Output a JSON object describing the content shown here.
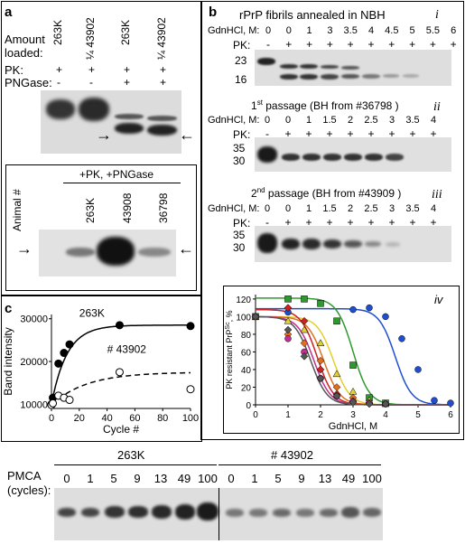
{
  "panel_a": {
    "label": "a",
    "amount_loaded_label": "Amount\nloaded:",
    "lane_labels": [
      "263K",
      "¼ 43902",
      "263K",
      "¼ 43902"
    ],
    "pk_label": "PK:",
    "pngase_label": "PNGase:",
    "pk_values": [
      "+",
      "+",
      "+",
      "+"
    ],
    "pngase_values": [
      "-",
      "-",
      "+",
      "+"
    ],
    "lower_header": "+PK, +PNGase",
    "animal_label": "Animal #",
    "lower_lane_labels": [
      "263K",
      "43908",
      "36798"
    ],
    "arrow_left": "→",
    "arrow_right": "←"
  },
  "panel_b": {
    "label": "b",
    "i": {
      "title": "rPrP fibrils annealed in NBH",
      "roman": "i",
      "gdn_label": "GdnHCl, M:",
      "gdn_values": [
        "0",
        "0",
        "1",
        "3",
        "3.5",
        "4",
        "4.5",
        "5",
        "5.5",
        "6"
      ],
      "pk_label": "PK:",
      "pk_values": [
        "-",
        "+",
        "+",
        "+",
        "+",
        "+",
        "+",
        "+",
        "+",
        "+"
      ],
      "mw": [
        "23",
        "16"
      ]
    },
    "ii": {
      "title_pre": "1",
      "title_sup": "st",
      "title_post": " passage (BH from #36798 )",
      "roman": "ii",
      "gdn_label": "GdnHCl, M:",
      "gdn_values": [
        "0",
        "0",
        "1",
        "1.5",
        "2",
        "2.5",
        "3",
        "3.5",
        "4"
      ],
      "pk_label": "PK:",
      "pk_values": [
        "-",
        "+",
        "+",
        "+",
        "+",
        "+",
        "+",
        "+",
        "+"
      ],
      "mw": [
        "35",
        "30"
      ]
    },
    "iii": {
      "title_pre": "2",
      "title_sup": "nd",
      "title_post": " passage (BH from #43909 )",
      "roman": "iii",
      "gdn_label": "GdnHCl, M:",
      "gdn_values": [
        "0",
        "0",
        "1",
        "1.5",
        "2",
        "2.5",
        "3",
        "3.5",
        "4"
      ],
      "pk_label": "PK:",
      "pk_values": [
        "-",
        "+",
        "+",
        "+",
        "+",
        "+",
        "+",
        "+",
        "+"
      ],
      "mw": [
        "35",
        "30"
      ]
    },
    "iv": {
      "roman": "iv"
    }
  },
  "panel_c": {
    "label": "c",
    "pmca_label": "PMCA\n(cycles):",
    "group_263k": "263K",
    "group_43902": "# 43902",
    "cycles_263k": [
      "0",
      "1",
      "5",
      "9",
      "13",
      "49",
      "100"
    ],
    "cycles_43902": [
      "0",
      "1",
      "5",
      "9",
      "13",
      "49",
      "100"
    ]
  },
  "chart_data": [
    {
      "type": "scatter",
      "ylabel": "Band intensity",
      "xlabel": "Cycle #",
      "xlim": [
        0,
        100
      ],
      "ylim": [
        9000,
        31000
      ],
      "x_ticks": [
        0,
        20,
        40,
        60,
        80,
        100
      ],
      "y_ticks": [
        10000,
        20000,
        30000
      ],
      "y_tick_labels": [
        "10000",
        "20000",
        "30000"
      ],
      "grid": false,
      "series": [
        {
          "name": "263K",
          "fill": "#000000",
          "x": [
            0,
            1,
            5,
            9,
            13,
            49,
            100
          ],
          "y": [
            10000,
            11500,
            19500,
            22000,
            24000,
            28500,
            28300
          ],
          "fit": "solid"
        },
        {
          "name": "# 43902",
          "fill": "#ffffff",
          "x": [
            0,
            1,
            5,
            9,
            13,
            49,
            100
          ],
          "y": [
            9800,
            10200,
            12000,
            11500,
            11000,
            17500,
            13500
          ],
          "fit": "dashed"
        }
      ]
    },
    {
      "type": "line",
      "ylabel_pre": "PK resistant PrP",
      "ylabel_sup": "Sc",
      "ylabel_post": ", %",
      "xlabel": "GdnHCl, M",
      "xlim": [
        0,
        6
      ],
      "ylim": [
        0,
        125
      ],
      "x_ticks": [
        0,
        1,
        2,
        3,
        4,
        5,
        6
      ],
      "y_ticks": [
        0,
        20,
        40,
        60,
        80,
        100,
        120
      ],
      "grid": false,
      "series": [
        {
          "color": "#1f4fcf",
          "marker": "circle",
          "x": [
            0,
            1,
            3,
            3.5,
            4,
            4.5,
            5,
            5.5,
            6
          ],
          "y": [
            100,
            105,
            108,
            110,
            100,
            75,
            40,
            5,
            2
          ],
          "mid": 4.3,
          "top": 109
        },
        {
          "color": "#2e9a2e",
          "marker": "square",
          "x": [
            0,
            1,
            1.5,
            2,
            2.5,
            3,
            3.5,
            4
          ],
          "y": [
            100,
            120,
            120,
            115,
            95,
            45,
            8,
            2
          ],
          "mid": 3.0,
          "top": 121
        },
        {
          "color": "#e0d030",
          "marker": "triangle",
          "x": [
            0,
            1,
            1.5,
            2,
            2.5,
            3,
            3.5,
            4
          ],
          "y": [
            100,
            95,
            85,
            70,
            35,
            15,
            5,
            1
          ],
          "mid": 2.4,
          "top": 100
        },
        {
          "color": "#e07020",
          "marker": "diamond",
          "x": [
            0,
            1,
            1.5,
            2,
            2.5,
            3,
            3.5,
            4
          ],
          "y": [
            100,
            80,
            70,
            50,
            20,
            8,
            2,
            1
          ],
          "mid": 2.1,
          "top": 100
        },
        {
          "color": "#cc2222",
          "marker": "diamond",
          "x": [
            0,
            1,
            1.5,
            2,
            2.5,
            3,
            3.5,
            4
          ],
          "y": [
            100,
            110,
            95,
            40,
            12,
            4,
            2,
            1
          ],
          "mid": 1.9,
          "top": 108
        },
        {
          "color": "#c03090",
          "marker": "circle",
          "x": [
            0,
            1,
            1.5,
            2,
            2.5,
            3,
            3.5,
            4
          ],
          "y": [
            100,
            75,
            60,
            30,
            10,
            4,
            2,
            1
          ],
          "mid": 1.8,
          "top": 100
        },
        {
          "color": "#555555",
          "marker": "diamond",
          "x": [
            0,
            1,
            1.5,
            2,
            2.5,
            3,
            3.5,
            4
          ],
          "y": [
            100,
            85,
            55,
            30,
            10,
            3,
            1,
            1
          ],
          "mid": 1.7,
          "top": 100
        }
      ]
    }
  ]
}
